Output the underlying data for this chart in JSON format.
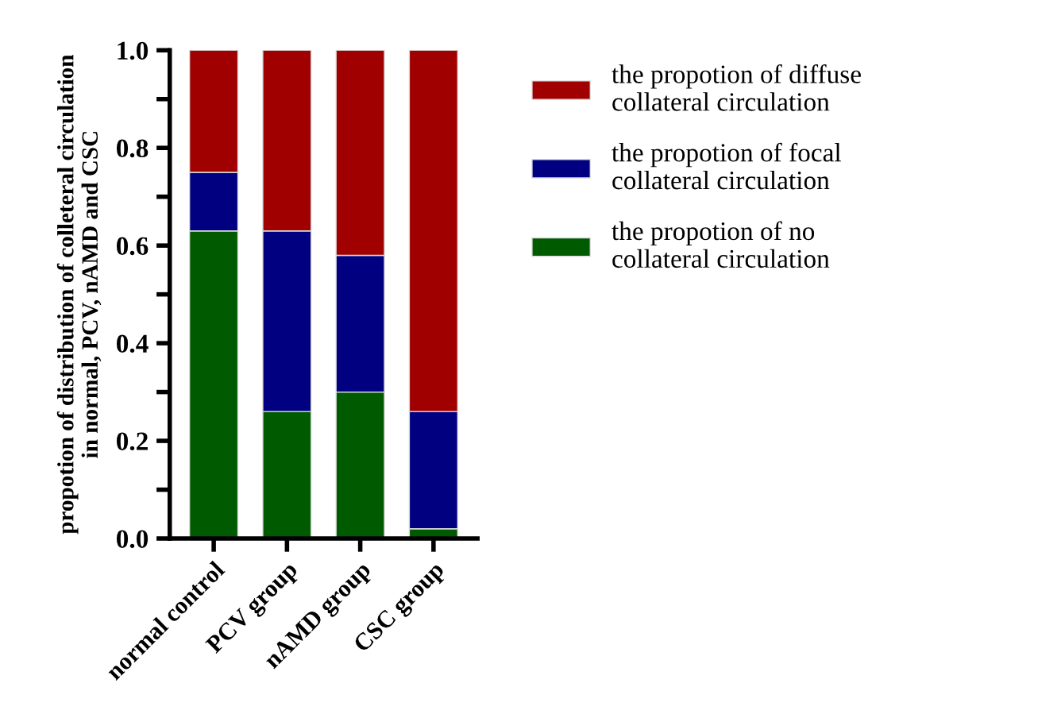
{
  "chart_data": {
    "type": "bar",
    "stacked": true,
    "ylabel": "propotion of distribution of colleteral circulation\nin normal, PCV, nAMD and CSC",
    "categories": [
      "normal control",
      "PCV group",
      "nAMD group",
      "CSC group"
    ],
    "series": [
      {
        "name": "the propotion of no\ncollateral circulation",
        "color": "#005a00",
        "values": [
          0.63,
          0.26,
          0.3,
          0.02
        ]
      },
      {
        "name": "the propotion of focal\ncollateral circulation",
        "color": "#000080",
        "values": [
          0.12,
          0.37,
          0.28,
          0.24
        ]
      },
      {
        "name": "the propotion of diffuse\ncollateral circulation",
        "color": "#a00000",
        "values": [
          0.25,
          0.37,
          0.42,
          0.74
        ]
      }
    ],
    "ylim": [
      0,
      1.0
    ],
    "yticks": [
      {
        "value": 0.0,
        "label": "0.0"
      },
      {
        "value": 0.1,
        "label": null
      },
      {
        "value": 0.2,
        "label": "0.2"
      },
      {
        "value": 0.3,
        "label": null
      },
      {
        "value": 0.4,
        "label": "0.4"
      },
      {
        "value": 0.5,
        "label": null
      },
      {
        "value": 0.6,
        "label": "0.6"
      },
      {
        "value": 0.7,
        "label": null
      },
      {
        "value": 0.8,
        "label": "0.8"
      },
      {
        "value": 0.9,
        "label": null
      },
      {
        "value": 1.0,
        "label": "1.0"
      }
    ],
    "legend": "right",
    "grid": false
  }
}
